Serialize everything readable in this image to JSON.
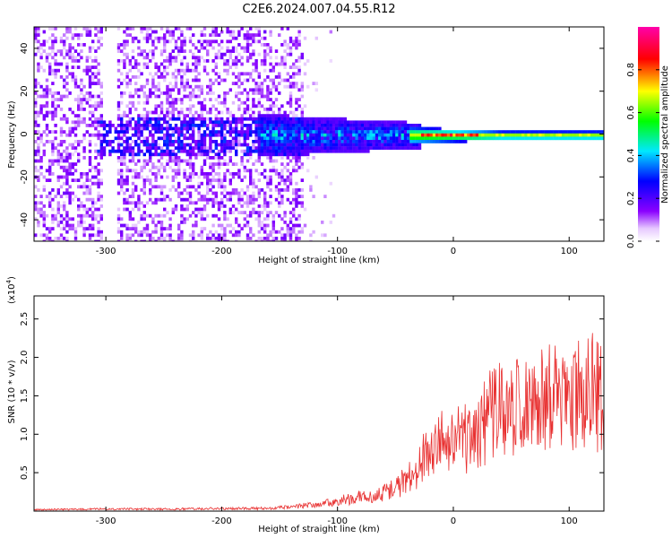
{
  "figure_title": "C2E6.2024.007.04.55.R12",
  "colors": {
    "snr_line": "#e83030",
    "frame": "#000000"
  },
  "chart_data": [
    {
      "type": "heatmap",
      "name": "spectrogram",
      "xlabel": "Height of straight line (km)",
      "ylabel": "Frequency (Hz)",
      "xlim": [
        -362,
        130
      ],
      "ylim": [
        -50,
        50
      ],
      "xticks": [
        -300,
        -200,
        -100,
        0,
        100
      ],
      "yticks": [
        -40,
        -20,
        0,
        20,
        40
      ],
      "colorbar": {
        "label": "Normalized spectral amplitude",
        "range": [
          0,
          1
        ],
        "ticks": [
          "0.0",
          "0.2",
          "0.4",
          "0.6",
          "0.8"
        ],
        "tick_values": [
          0,
          0.2,
          0.4,
          0.6,
          0.8
        ],
        "colormap": "rainbow (white, purple, blue, cyan, green, yellow, red, magenta)"
      },
      "description_features": {
        "noise_band_x": [
          -362,
          -130
        ],
        "signal_center_hz": 0,
        "strong_narrowband_x": [
          -30,
          130
        ]
      }
    },
    {
      "type": "line",
      "name": "snr",
      "xlabel": "Height of straight line (km)",
      "ylabel": "SNR (10 * v/v)",
      "multiplier": "(x10",
      "multiplier_exp": "4",
      "multiplier_close": ")",
      "xlim": [
        -362,
        130
      ],
      "ylim": [
        0,
        2.8
      ],
      "xticks": [
        -300,
        -200,
        -100,
        0,
        100
      ],
      "yticks": [
        0.5,
        1.0,
        1.5,
        2.0,
        2.5
      ],
      "ytick_labels": [
        "0.5",
        "1.0",
        "1.5",
        "2.0",
        "2.5"
      ],
      "envelope": {
        "x": [
          -362,
          -300,
          -250,
          -160,
          -140,
          -120,
          -100,
          -80,
          -60,
          -40,
          -30,
          -20,
          -10,
          0,
          10,
          20,
          30,
          40,
          50,
          60,
          70,
          80,
          90,
          100,
          110,
          120,
          130
        ],
        "y": [
          0.02,
          0.03,
          0.03,
          0.04,
          0.06,
          0.1,
          0.15,
          0.2,
          0.28,
          0.45,
          0.6,
          0.95,
          1.05,
          1.0,
          1.05,
          1.2,
          1.35,
          1.45,
          1.45,
          1.55,
          1.55,
          1.6,
          1.65,
          1.65,
          1.75,
          1.75,
          1.55
        ]
      }
    }
  ]
}
